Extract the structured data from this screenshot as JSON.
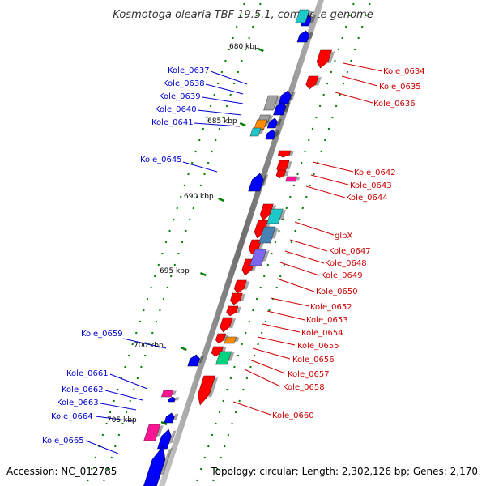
{
  "title": "Kosmotoga olearia TBF 19.5.1, complete genome",
  "accession": "Accession: NC_012785",
  "topology": "Topology: circular; Length: 2,302,126 bp; Genes: 2,170",
  "colors": {
    "forward": "#ff0000",
    "reverse": "#0000ff",
    "backbone": "#808080",
    "tick": "#008000",
    "orange": "#ff8c00",
    "cyan": "#1ec8c8",
    "steelblue": "#4682b4",
    "slate": "#7b68ee",
    "gray": "#a0a0a0",
    "pink": "#ff1493",
    "teal": "#00d27f"
  },
  "kbp_marks": [
    "680 kbp",
    "685 kbp",
    "690 kbp",
    "695 kbp",
    "700 kbp",
    "705 kbp"
  ],
  "left_labels": [
    "Kole_0637",
    "Kole_0638",
    "Kole_0639",
    "Kole_0640",
    "Kole_0641",
    "Kole_0645",
    "Kole_0659",
    "Kole_0661",
    "Kole_0662",
    "Kole_0663",
    "Kole_0664",
    "Kole_0665"
  ],
  "right_labels": [
    "Kole_0634",
    "Kole_0635",
    "Kole_0636",
    "Kole_0642",
    "Kole_0643",
    "Kole_0644",
    "glpX",
    "Kole_0647",
    "Kole_0648",
    "Kole_0649",
    "Kole_0650",
    "Kole_0652",
    "Kole_0653",
    "Kole_0654",
    "Kole_0655",
    "Kole_0656",
    "Kole_0657",
    "Kole_0658",
    "Kole_0660"
  ]
}
